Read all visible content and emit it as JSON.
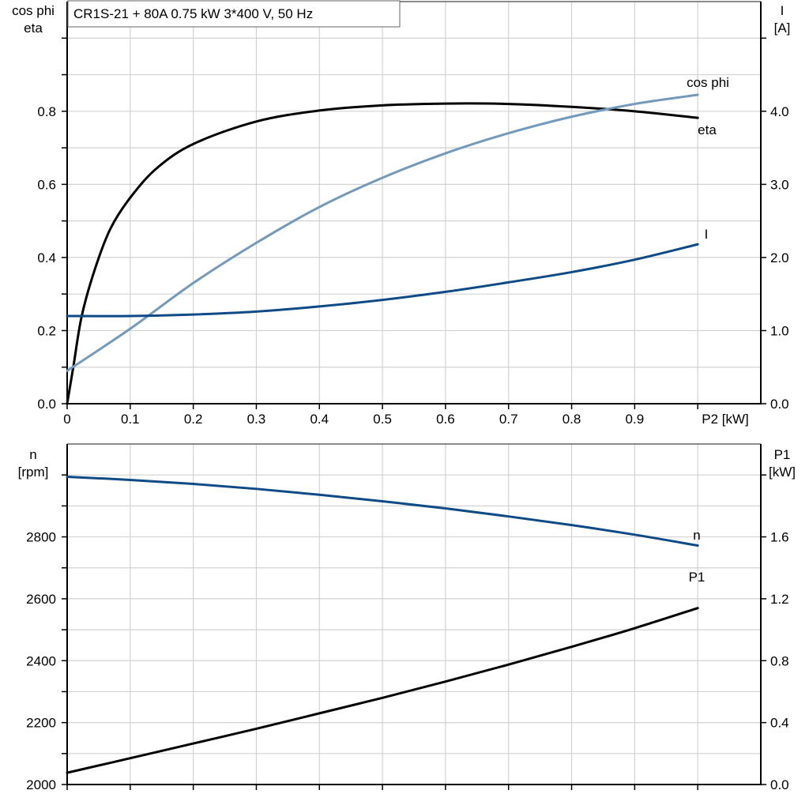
{
  "title_box": "CR1S-21 + 80A   0.75 kW   3*400 V, 50 Hz",
  "colors": {
    "eta": "#000000",
    "cos_phi": "#7399bb",
    "I": "#0d4a86",
    "n": "#0d4a86",
    "P1": "#000000",
    "grid": "#d2d2d2"
  },
  "chart_data": [
    {
      "type": "line",
      "title": "CR1S-21 + 80A   0.75 kW   3*400 V, 50 Hz",
      "xlabel": "P2 [kW]",
      "xlim": [
        0,
        1.1
      ],
      "xticks": [
        "0",
        "0.1",
        "0.2",
        "0.3",
        "0.4",
        "0.5",
        "0.6",
        "0.7",
        "0.8",
        "0.9"
      ],
      "ylabel_left": [
        "cos phi",
        "eta"
      ],
      "ylim_left": [
        0,
        1.1
      ],
      "yticks_left": [
        "0.0",
        "0.2",
        "0.4",
        "0.6",
        "0.8"
      ],
      "ylabel_right": [
        "I",
        "[A]"
      ],
      "ylim_right": [
        0,
        5.5
      ],
      "yticks_right": [
        "0.0",
        "1.0",
        "2.0",
        "3.0",
        "4.0"
      ],
      "grid": true,
      "series": [
        {
          "name": "eta",
          "axis": "left",
          "x": [
            0,
            0.01,
            0.023,
            0.044,
            0.069,
            0.102,
            0.144,
            0.202,
            0.3,
            0.4,
            0.5,
            0.6,
            0.7,
            0.8,
            0.9,
            1.0
          ],
          "y": [
            0,
            0.103,
            0.239,
            0.368,
            0.48,
            0.568,
            0.647,
            0.712,
            0.772,
            0.802,
            0.816,
            0.821,
            0.82,
            0.812,
            0.8,
            0.782
          ]
        },
        {
          "name": "cos phi",
          "axis": "left",
          "x": [
            0,
            0.1,
            0.2,
            0.3,
            0.4,
            0.5,
            0.6,
            0.7,
            0.8,
            0.9,
            1.0
          ],
          "y": [
            0.09,
            0.205,
            0.33,
            0.44,
            0.538,
            0.618,
            0.685,
            0.74,
            0.785,
            0.82,
            0.845
          ]
        },
        {
          "name": "I",
          "axis": "right",
          "x": [
            0,
            0.1,
            0.2,
            0.3,
            0.4,
            0.5,
            0.6,
            0.7,
            0.8,
            0.9,
            1.0
          ],
          "y": [
            1.2,
            1.2,
            1.22,
            1.26,
            1.33,
            1.42,
            1.53,
            1.66,
            1.8,
            1.97,
            2.18
          ]
        }
      ]
    },
    {
      "type": "line",
      "xlim": [
        0,
        1.1
      ],
      "ylabel_left": [
        "n",
        "[rpm]"
      ],
      "ylim_left": [
        2000,
        3100
      ],
      "yticks_left": [
        "2000",
        "2200",
        "2400",
        "2600",
        "2800"
      ],
      "ylabel_right": [
        "P1",
        "[kW]"
      ],
      "ylim_right": [
        0,
        2.2
      ],
      "yticks_right": [
        "0.0",
        "0.4",
        "0.8",
        "1.2",
        "1.6"
      ],
      "grid": true,
      "series": [
        {
          "name": "n",
          "axis": "left",
          "x": [
            0,
            0.1,
            0.2,
            0.3,
            0.4,
            0.5,
            0.6,
            0.7,
            0.8,
            0.9,
            1.0
          ],
          "y": [
            2994,
            2984,
            2971,
            2955,
            2936,
            2915,
            2892,
            2866,
            2838,
            2807,
            2772
          ]
        },
        {
          "name": "P1",
          "axis": "right",
          "x": [
            0,
            0.1,
            0.2,
            0.3,
            0.4,
            0.5,
            0.6,
            0.7,
            0.8,
            0.9,
            1.0
          ],
          "y": [
            0.076,
            0.17,
            0.265,
            0.36,
            0.46,
            0.56,
            0.665,
            0.775,
            0.89,
            1.01,
            1.14
          ]
        }
      ]
    }
  ]
}
